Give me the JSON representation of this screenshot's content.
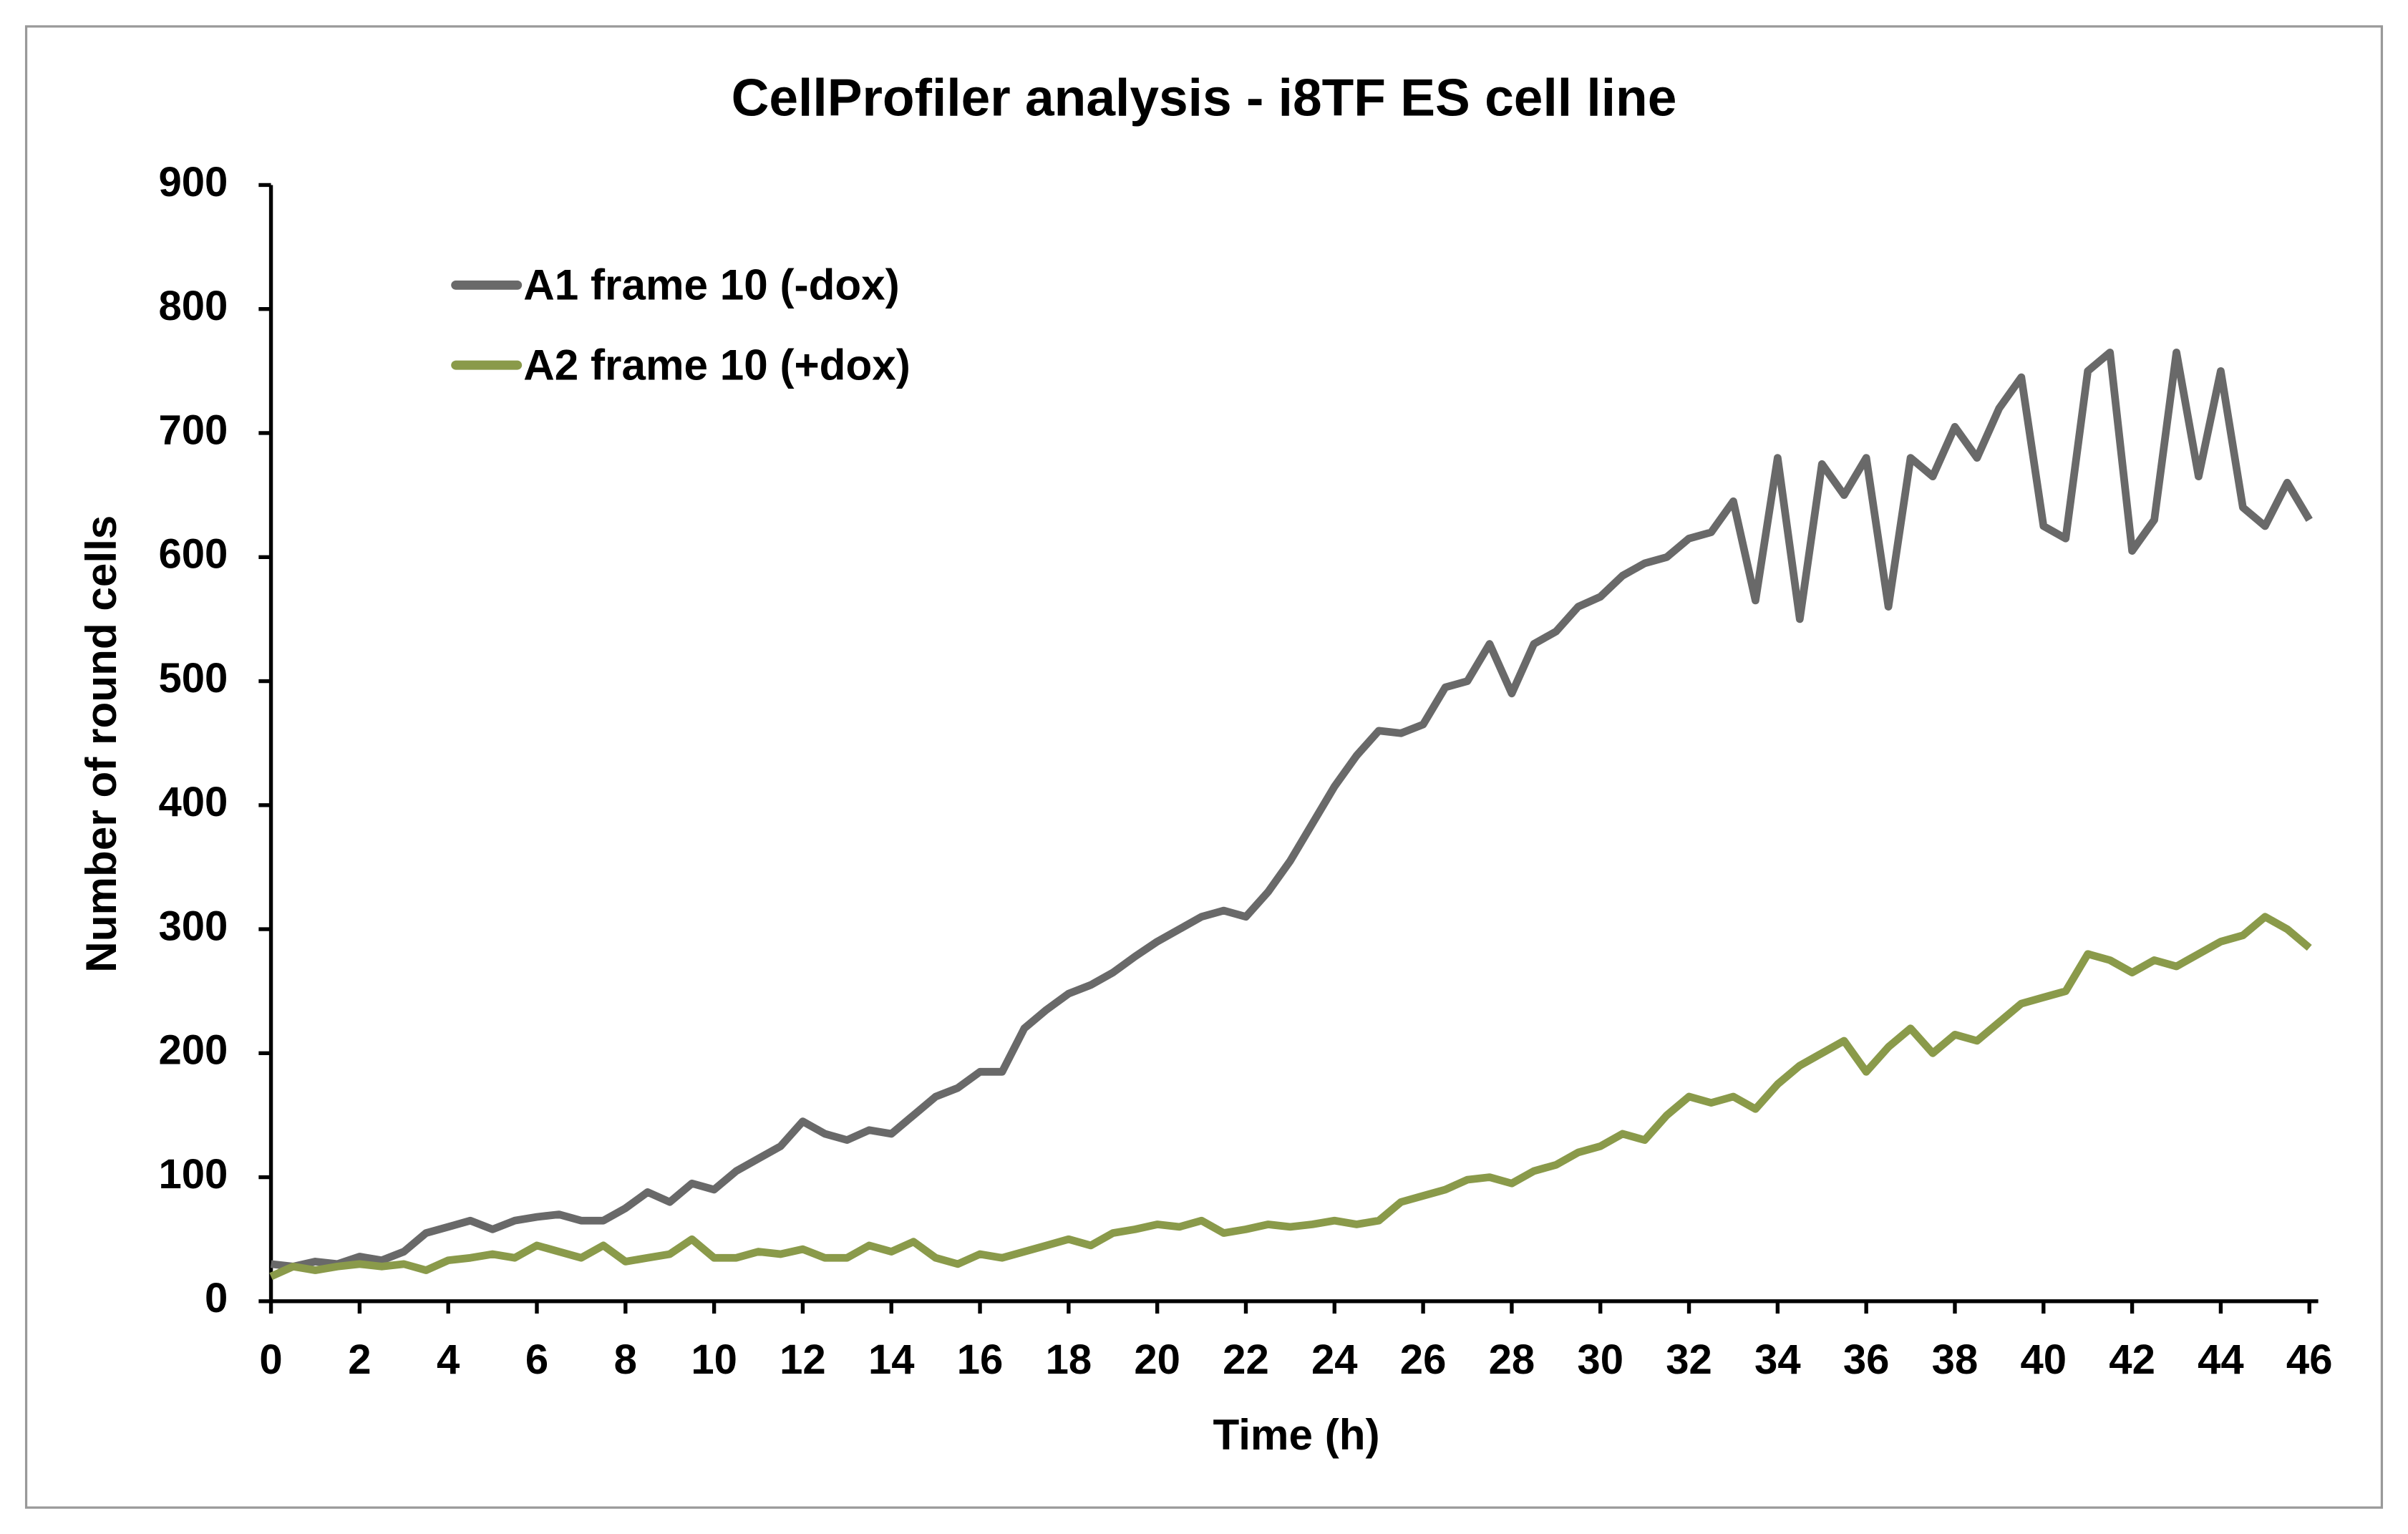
{
  "chart_data": {
    "type": "line",
    "title": "CellProfiler analysis - i8TF ES cell line",
    "xlabel": "Time (h)",
    "ylabel": "Number of round cells",
    "x": [
      0,
      0.5,
      1,
      1.5,
      2,
      2.5,
      3,
      3.5,
      4,
      4.5,
      5,
      5.5,
      6,
      6.5,
      7,
      7.5,
      8,
      8.5,
      9,
      9.5,
      10,
      10.5,
      11,
      11.5,
      12,
      12.5,
      13,
      13.5,
      14,
      14.5,
      15,
      15.5,
      16,
      16.5,
      17,
      17.5,
      18,
      18.5,
      19,
      19.5,
      20,
      20.5,
      21,
      21.5,
      22,
      22.5,
      23,
      23.5,
      24,
      24.5,
      25,
      25.5,
      26,
      26.5,
      27,
      27.5,
      28,
      28.5,
      29,
      29.5,
      30,
      30.5,
      31,
      31.5,
      32,
      32.5,
      33,
      33.5,
      34,
      34.5,
      35,
      35.5,
      36,
      36.5,
      37,
      37.5,
      38,
      38.5,
      39,
      39.5,
      40,
      40.5,
      41,
      41.5,
      42,
      42.5,
      43,
      43.5,
      44,
      44.5,
      45,
      45.5,
      46
    ],
    "series": [
      {
        "name": "A1 frame 10 (-dox)",
        "color": "#696969",
        "values": [
          30,
          28,
          32,
          30,
          36,
          33,
          40,
          55,
          60,
          65,
          58,
          65,
          68,
          70,
          65,
          65,
          75,
          88,
          80,
          95,
          90,
          105,
          115,
          125,
          145,
          135,
          130,
          138,
          135,
          150,
          165,
          172,
          185,
          185,
          220,
          235,
          248,
          255,
          265,
          278,
          290,
          300,
          310,
          315,
          310,
          330,
          355,
          385,
          415,
          440,
          460,
          458,
          465,
          495,
          500,
          530,
          490,
          530,
          540,
          560,
          568,
          585,
          595,
          600,
          615,
          620,
          645,
          565,
          680,
          550,
          675,
          650,
          680,
          560,
          680,
          665,
          705,
          680,
          720,
          745,
          625,
          615,
          750,
          765,
          605,
          630,
          765,
          665,
          750,
          640,
          625,
          660,
          630
        ]
      },
      {
        "name": "A2 frame 10 (+dox)",
        "color": "#8a9a4a",
        "values": [
          20,
          28,
          25,
          28,
          30,
          28,
          30,
          25,
          33,
          35,
          38,
          35,
          45,
          40,
          35,
          45,
          32,
          35,
          38,
          50,
          35,
          35,
          40,
          38,
          42,
          35,
          35,
          45,
          40,
          48,
          35,
          30,
          38,
          35,
          40,
          45,
          50,
          45,
          55,
          58,
          62,
          60,
          65,
          55,
          58,
          62,
          60,
          62,
          65,
          62,
          65,
          80,
          85,
          90,
          98,
          100,
          95,
          105,
          110,
          120,
          125,
          135,
          130,
          150,
          165,
          160,
          165,
          155,
          175,
          190,
          200,
          210,
          185,
          205,
          220,
          200,
          215,
          210,
          225,
          240,
          245,
          250,
          280,
          275,
          265,
          275,
          270,
          280,
          290,
          295,
          310,
          300,
          285
        ]
      }
    ],
    "xlim": [
      0,
      46.2
    ],
    "xticks": [
      0,
      2,
      4,
      6,
      8,
      10,
      12,
      14,
      16,
      18,
      20,
      22,
      24,
      26,
      28,
      30,
      32,
      34,
      36,
      38,
      40,
      42,
      44,
      46
    ],
    "ylim": [
      0,
      900
    ],
    "yticks": [
      0,
      100,
      200,
      300,
      400,
      500,
      600,
      700,
      800,
      900
    ],
    "legend": "upper left"
  }
}
